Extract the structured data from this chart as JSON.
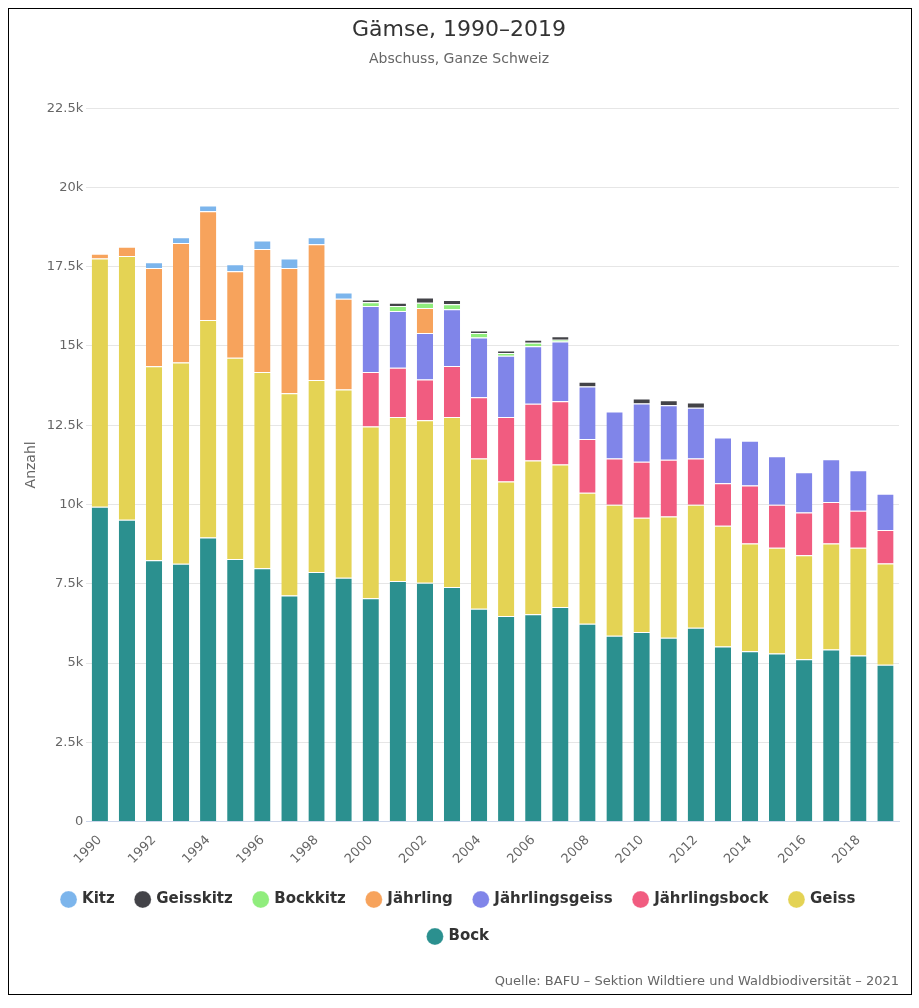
{
  "chart_data": {
    "type": "bar",
    "title": "Gämse, 1990–2019",
    "subtitle": "Abschuss, Ganze Schweiz",
    "ylabel": "Anzahl",
    "stacked": true,
    "categories": [
      "1990",
      null,
      "1992",
      null,
      "1994",
      null,
      "1996",
      null,
      "1998",
      null,
      "2000",
      null,
      "2002",
      null,
      "2004",
      null,
      "2006",
      null,
      "2008",
      null,
      "2010",
      null,
      "2012",
      null,
      "2014",
      null,
      "2016",
      null,
      "2018",
      null
    ],
    "series": [
      {
        "name": "Bock",
        "color": "#2b908f",
        "values": [
          9930,
          9520,
          8240,
          8130,
          8960,
          8280,
          7990,
          7130,
          7870,
          7690,
          7040,
          7590,
          7530,
          7400,
          6710,
          6480,
          6540,
          6770,
          6240,
          5860,
          5980,
          5800,
          6110,
          5520,
          5370,
          5300,
          5120,
          5430,
          5240,
          4950
        ]
      },
      {
        "name": "Geiss",
        "color": "#e4d354",
        "values": [
          7830,
          8320,
          6120,
          6350,
          6860,
          6350,
          6190,
          6380,
          6060,
          5940,
          5420,
          5170,
          5130,
          5360,
          4740,
          4250,
          4850,
          4490,
          4130,
          4130,
          3600,
          3820,
          3880,
          3810,
          3400,
          3340,
          3280,
          3340,
          3400,
          3190
        ]
      },
      {
        "name": "Jährlingsbock",
        "color": "#f15c80",
        "values": [
          null,
          null,
          null,
          null,
          null,
          null,
          null,
          null,
          null,
          null,
          1720,
          1550,
          1280,
          1610,
          1930,
          2030,
          1790,
          2000,
          1700,
          1460,
          1770,
          1790,
          1460,
          1340,
          1830,
          1350,
          1350,
          1310,
          1160,
          1060
        ]
      },
      {
        "name": "Jährlingsgeiss",
        "color": "#8085e9",
        "values": [
          null,
          null,
          null,
          null,
          null,
          null,
          null,
          null,
          null,
          null,
          2080,
          1790,
          1470,
          1790,
          1890,
          1930,
          1810,
          1880,
          1650,
          1480,
          1840,
          1720,
          1600,
          1440,
          1410,
          1530,
          1270,
          1350,
          1280,
          1140
        ]
      },
      {
        "name": "Jährling",
        "color": "#f7a35c",
        "values": [
          150,
          290,
          3100,
          3770,
          3430,
          2730,
          3880,
          3950,
          4280,
          2860,
          null,
          null,
          790,
          null,
          null,
          null,
          null,
          null,
          null,
          null,
          null,
          null,
          null,
          null,
          null,
          null,
          null,
          null,
          null,
          null
        ]
      },
      {
        "name": "Bockkitz",
        "color": "#90ed7d",
        "values": [
          null,
          null,
          null,
          null,
          null,
          null,
          null,
          null,
          null,
          null,
          120,
          160,
          160,
          160,
          140,
          90,
          110,
          60,
          null,
          null,
          null,
          null,
          null,
          null,
          null,
          null,
          null,
          null,
          null,
          null
        ]
      },
      {
        "name": "Geisskitz",
        "color": "#434348",
        "values": [
          null,
          null,
          null,
          null,
          null,
          null,
          null,
          null,
          null,
          null,
          90,
          100,
          170,
          130,
          80,
          80,
          100,
          110,
          150,
          null,
          150,
          160,
          170,
          null,
          null,
          null,
          null,
          null,
          null,
          null
        ]
      },
      {
        "name": "Kitz",
        "color": "#7cb5ec",
        "values": [
          null,
          null,
          180,
          180,
          180,
          220,
          270,
          300,
          220,
          200,
          null,
          null,
          null,
          null,
          null,
          null,
          null,
          null,
          null,
          null,
          null,
          null,
          null,
          null,
          null,
          null,
          null,
          null,
          null,
          null
        ]
      }
    ],
    "ylim": [
      0,
      22500
    ],
    "yticks": [
      0,
      {
        "value": 2500,
        "label": "2.5k"
      },
      {
        "value": 5000,
        "label": "5k"
      },
      {
        "value": 7500,
        "label": "7.5k"
      },
      {
        "value": 10000,
        "label": "10k"
      },
      {
        "value": 12500,
        "label": "12.5k"
      },
      {
        "value": 15000,
        "label": "15k"
      },
      {
        "value": 17500,
        "label": "17.5k"
      },
      {
        "value": 20000,
        "label": "20k"
      },
      {
        "value": 22500,
        "label": "22.5k"
      }
    ],
    "grid": "y",
    "legend": "bottom",
    "annotations": [
      "Quelle: BAFU – Sektion Wildtiere und Waldbiodiversität – 2021"
    ]
  }
}
